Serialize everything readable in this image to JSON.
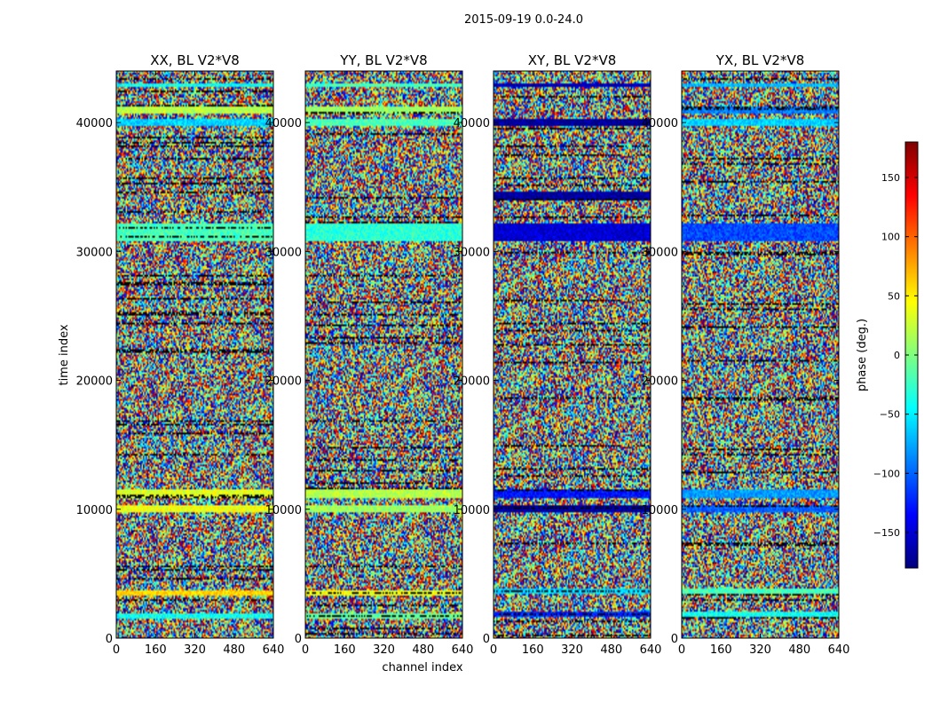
{
  "figure": {
    "suptitle": "2015-09-19 0.0-24.0"
  },
  "chart_data": {
    "type": "heatmap",
    "title": "2015-09-19 0.0-24.0",
    "xlabel": "channel index",
    "ylabel": "time index",
    "xlim": [
      0,
      640
    ],
    "ylim": [
      0,
      44000
    ],
    "x_ticks": [
      "0",
      "160",
      "320",
      "480",
      "640"
    ],
    "y_ticks": [
      "0",
      "10000",
      "20000",
      "30000",
      "40000"
    ],
    "panels": [
      {
        "title": "XX, BL V2*V8",
        "coherent_bands": [
          [
            1500,
            1900,
            -40
          ],
          [
            3300,
            3700,
            60
          ],
          [
            9800,
            10300,
            40
          ],
          [
            10900,
            11600,
            35
          ],
          [
            30800,
            32200,
            -20
          ],
          [
            39800,
            40300,
            -60
          ],
          [
            40700,
            41200,
            20
          ],
          [
            42700,
            43100,
            -40
          ]
        ]
      },
      {
        "title": "YY, BL V2*V8",
        "coherent_bands": [
          [
            1500,
            1900,
            -10
          ],
          [
            3300,
            3700,
            40
          ],
          [
            9800,
            10300,
            10
          ],
          [
            10900,
            11600,
            20
          ],
          [
            30800,
            32200,
            -30
          ],
          [
            39800,
            40300,
            -20
          ],
          [
            40700,
            41200,
            10
          ],
          [
            42700,
            43100,
            -20
          ]
        ]
      },
      {
        "title": "XY, BL V2*V8",
        "coherent_bands": [
          [
            1700,
            2100,
            -120
          ],
          [
            3400,
            3800,
            -60
          ],
          [
            9800,
            10300,
            -170
          ],
          [
            10900,
            11600,
            -130
          ],
          [
            30800,
            32200,
            -150
          ],
          [
            33900,
            34600,
            -170
          ],
          [
            39800,
            40300,
            -170
          ],
          [
            42700,
            43100,
            -160
          ]
        ]
      },
      {
        "title": "YX, BL V2*V8",
        "coherent_bands": [
          [
            1700,
            2100,
            -40
          ],
          [
            3400,
            3800,
            -20
          ],
          [
            9800,
            10300,
            -100
          ],
          [
            10900,
            11600,
            -80
          ],
          [
            30800,
            32200,
            -110
          ],
          [
            39800,
            40300,
            -60
          ],
          [
            40700,
            41200,
            -90
          ],
          [
            42700,
            43100,
            -70
          ]
        ]
      }
    ],
    "colorbar": {
      "label": "phase (deg.)",
      "range": [
        -180,
        180
      ],
      "ticks": [
        -150,
        -100,
        -50,
        0,
        50,
        100,
        150
      ],
      "tick_labels": [
        "−150",
        "−100",
        "−50",
        "0",
        "50",
        "100",
        "150"
      ],
      "colormap": "jet"
    },
    "grid": false
  }
}
